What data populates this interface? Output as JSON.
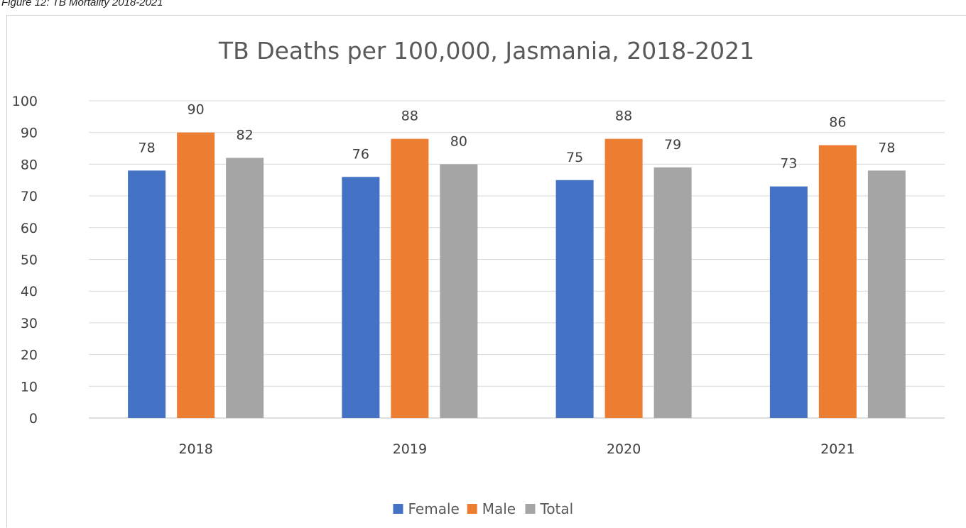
{
  "caption": "Figure 12: TB Mortality 2018-2021",
  "chart_data": {
    "type": "bar",
    "title": "TB Deaths per 100,000, Jasmania, 2018-2021",
    "xlabel": "",
    "ylabel": "",
    "categories": [
      "2018",
      "2019",
      "2020",
      "2021"
    ],
    "series": [
      {
        "name": "Female",
        "color": "#4472c4",
        "values": [
          78,
          76,
          75,
          73
        ]
      },
      {
        "name": "Male",
        "color": "#ed7d31",
        "values": [
          90,
          88,
          88,
          86
        ]
      },
      {
        "name": "Total",
        "color": "#a5a5a5",
        "values": [
          82,
          80,
          79,
          78
        ]
      }
    ],
    "ylim": [
      0,
      100
    ],
    "yticks": [
      0,
      10,
      20,
      30,
      40,
      50,
      60,
      70,
      80,
      90,
      100
    ],
    "grid": true,
    "legend_position": "bottom",
    "data_labels": true
  }
}
